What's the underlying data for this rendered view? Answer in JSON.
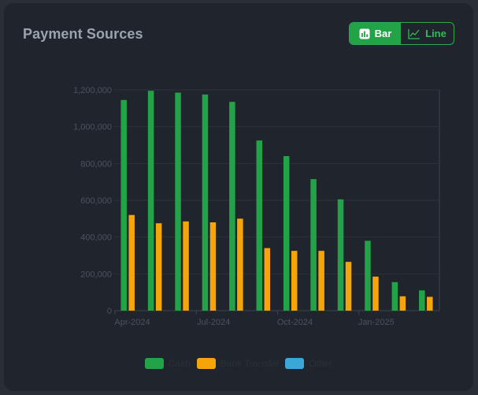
{
  "card": {
    "title": "Payment Sources",
    "toggle": {
      "bar_label": "Bar",
      "line_label": "Line",
      "selected": "Bar"
    }
  },
  "chart_data": {
    "type": "bar",
    "categories": [
      "Apr-2024",
      "May-2024",
      "Jun-2024",
      "Jul-2024",
      "Aug-2024",
      "Sep-2024",
      "Oct-2024",
      "Nov-2024",
      "Dec-2024",
      "Jan-2025",
      "Feb-2025",
      "Mar-2025"
    ],
    "x_tick_labels": [
      "Apr-2024",
      "Jul-2024",
      "Oct-2024",
      "Jan-2025"
    ],
    "y_ticks": [
      0,
      200000,
      400000,
      600000,
      800000,
      1000000,
      1200000
    ],
    "y_tick_labels": [
      "0",
      "200,000",
      "400,000",
      "600,000",
      "800,000",
      "1,000,000",
      "1,200,000"
    ],
    "ylim": [
      0,
      1200000
    ],
    "grid": true,
    "legend_position": "bottom",
    "series": [
      {
        "name": "Cash",
        "color": "#22a347",
        "values": [
          1145000,
          1195000,
          1185000,
          1175000,
          1135000,
          925000,
          840000,
          715000,
          605000,
          380000,
          155000,
          110000
        ]
      },
      {
        "name": "Bank Transfer",
        "color": "#f5a50a",
        "values": [
          520000,
          475000,
          485000,
          480000,
          500000,
          340000,
          325000,
          325000,
          265000,
          185000,
          78000,
          75000
        ]
      },
      {
        "name": "Other",
        "color": "#3ba7d6",
        "values": [
          0,
          0,
          0,
          0,
          0,
          0,
          0,
          0,
          0,
          0,
          0,
          0
        ]
      }
    ]
  }
}
